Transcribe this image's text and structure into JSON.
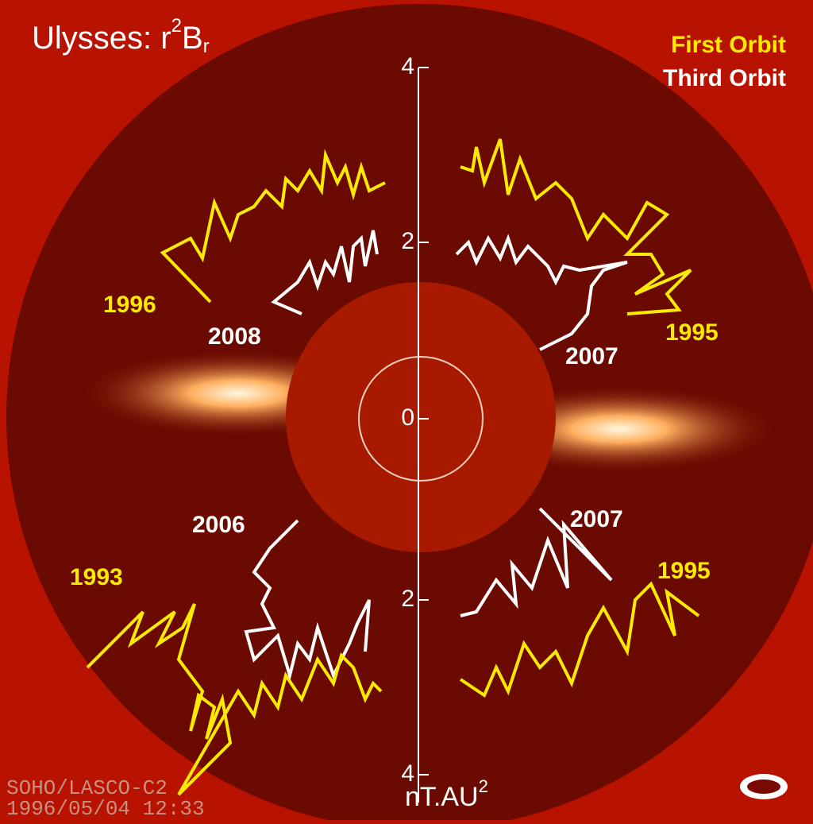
{
  "title": {
    "main": "Ulysses: r",
    "sup": "2",
    "base": "B",
    "sub": "r"
  },
  "legend": {
    "first": "First Orbit",
    "third": "Third Orbit"
  },
  "axis": {
    "ticks": [
      "4",
      "2",
      "0",
      "2",
      "4"
    ],
    "unit": "nT.AU",
    "unit_sup": "2"
  },
  "labels": {
    "upper_left_first": "1996",
    "upper_left_third": "2008",
    "upper_right_first": "1995",
    "upper_right_third": "2007",
    "lower_left_third": "2006",
    "lower_left_first": "1993",
    "lower_right_third": "2007",
    "lower_right_first": "1995"
  },
  "footer": {
    "instrument": "SOHO/LASCO-C2",
    "timestamp": "1996/05/04 12:33"
  }
}
